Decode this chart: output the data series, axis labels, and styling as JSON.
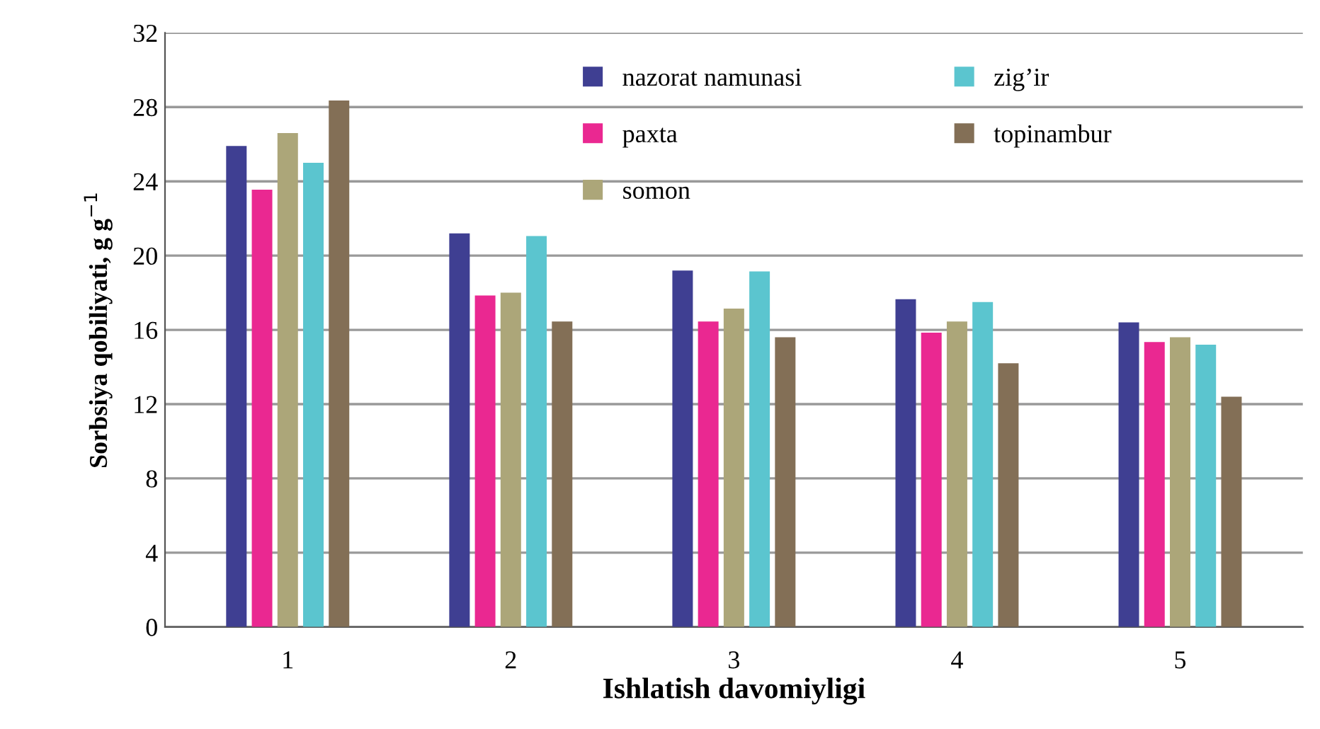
{
  "chart_data": {
    "type": "bar",
    "xlabel": "Ishlatish davomiyligi",
    "ylabel": "Sorbsiya qobiliyati, g g$^{−1}$",
    "categories": [
      "1",
      "2",
      "3",
      "4",
      "5"
    ],
    "series": [
      {
        "name": "nazorat namunasi",
        "color": "#3f3f92",
        "values": [
          25.9,
          21.2,
          19.2,
          17.65,
          16.4
        ]
      },
      {
        "name": "paxta",
        "color": "#ea2891",
        "values": [
          23.55,
          17.85,
          16.45,
          15.85,
          15.35
        ]
      },
      {
        "name": "somon",
        "color": "#aca679",
        "values": [
          26.6,
          18.0,
          17.15,
          16.45,
          15.6
        ]
      },
      {
        "name": "zig’ir",
        "color": "#5bc5cf",
        "values": [
          25.0,
          21.05,
          19.15,
          17.5,
          15.2
        ]
      },
      {
        "name": "topinambur",
        "color": "#836f56",
        "values": [
          28.35,
          16.45,
          15.6,
          14.2,
          12.4
        ]
      }
    ],
    "ylim": [
      0,
      32
    ],
    "yticks": [
      0,
      4,
      8,
      12,
      16,
      20,
      24,
      28,
      32
    ],
    "grid": "y",
    "legend": "top"
  }
}
